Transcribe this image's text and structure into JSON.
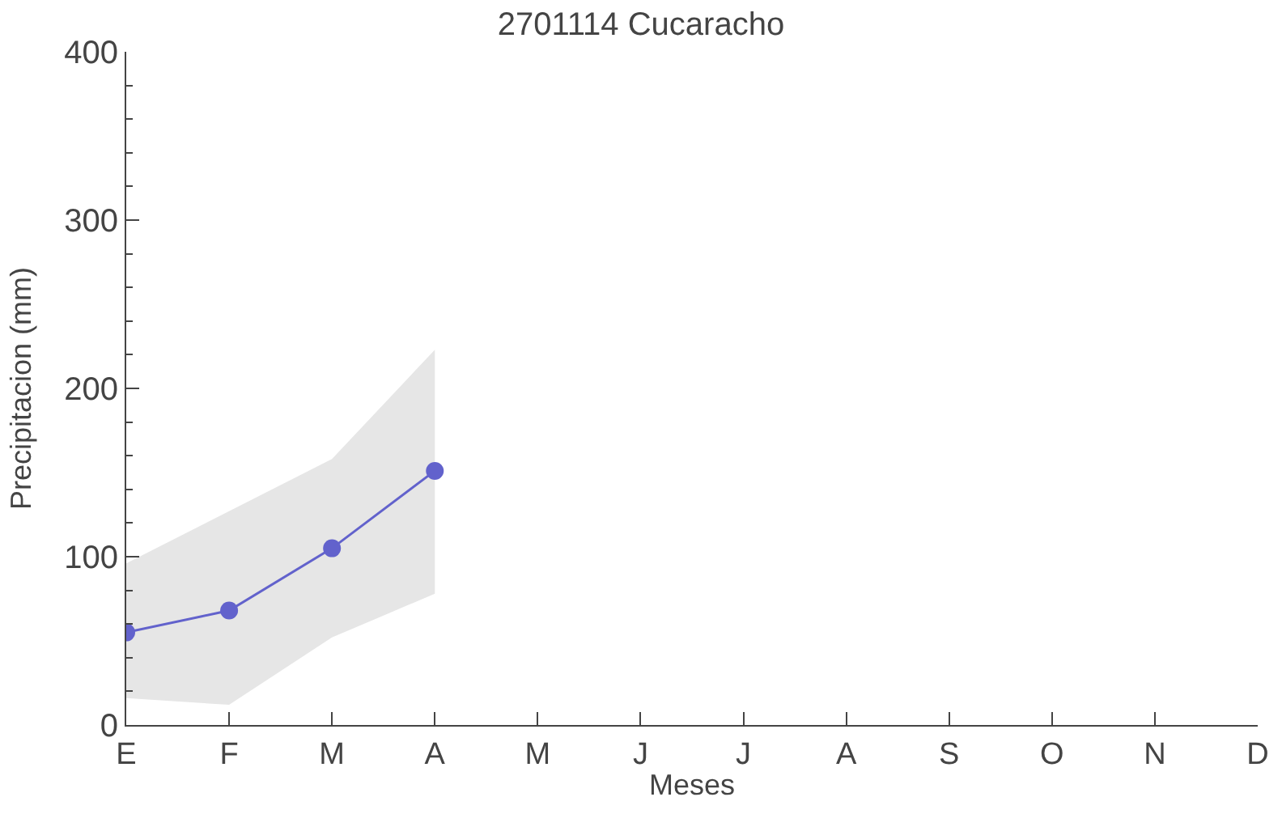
{
  "chart_data": {
    "type": "line",
    "title": "2701114 Cucaracho",
    "xlabel": "Meses",
    "ylabel": "Precipitacion (mm)",
    "categories": [
      "E",
      "F",
      "M",
      "A",
      "M",
      "J",
      "J",
      "A",
      "S",
      "O",
      "N",
      "D"
    ],
    "series": [
      {
        "color": "#6262cc",
        "values": [
          55,
          68,
          105,
          151,
          null,
          null,
          null,
          null,
          null,
          null,
          null,
          null
        ],
        "lower": [
          16,
          12,
          52,
          78,
          null,
          null,
          null,
          null,
          null,
          null,
          null,
          null
        ],
        "upper": [
          96,
          127,
          158,
          223,
          null,
          null,
          null,
          null,
          null,
          null,
          null,
          null
        ]
      }
    ],
    "ylim": [
      0,
      400
    ],
    "yticks": [
      0,
      100,
      200,
      300,
      400
    ],
    "marker": "circle",
    "line_style": "solid"
  }
}
